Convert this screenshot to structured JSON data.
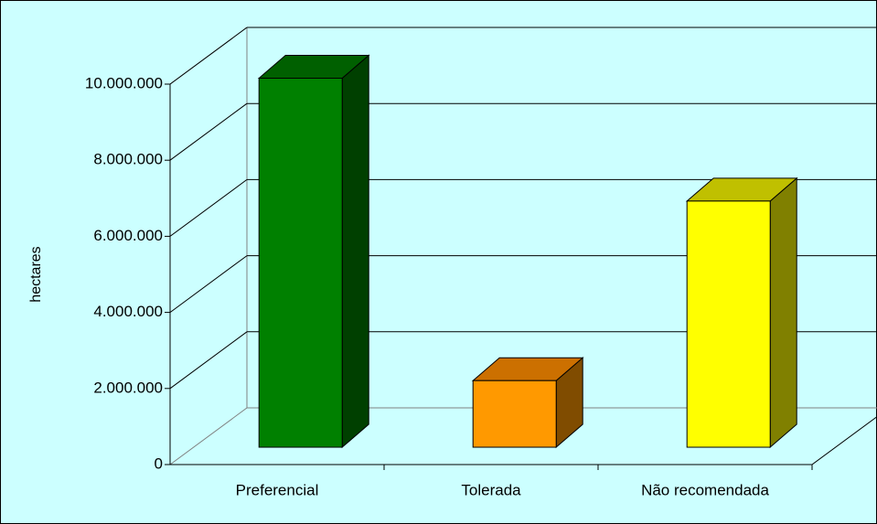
{
  "chart_data": {
    "type": "bar3d",
    "y_label": "hectares",
    "categories": [
      "Preferencial",
      "Tolerada",
      "Não recomendada"
    ],
    "values": [
      9700000,
      1750000,
      6470000
    ],
    "colors": [
      "#008000",
      "#ff9900",
      "#ffff00"
    ],
    "top_colors": [
      "#006000",
      "#cc7000",
      "#c0c000"
    ],
    "side_colors": [
      "#004000",
      "#804c00",
      "#808000"
    ],
    "background": "#ccffff",
    "ylim": [
      0,
      10000000
    ],
    "yticks": [
      0,
      {
        "value": 2000000,
        "label": "2.000.000"
      },
      {
        "value": 4000000,
        "label": "4.000.000"
      },
      {
        "value": 6000000,
        "label": "6.000.000"
      },
      {
        "value": 8000000,
        "label": "8.000.000"
      },
      {
        "value": 10000000,
        "label": "10.000.000"
      }
    ],
    "grid": true
  }
}
